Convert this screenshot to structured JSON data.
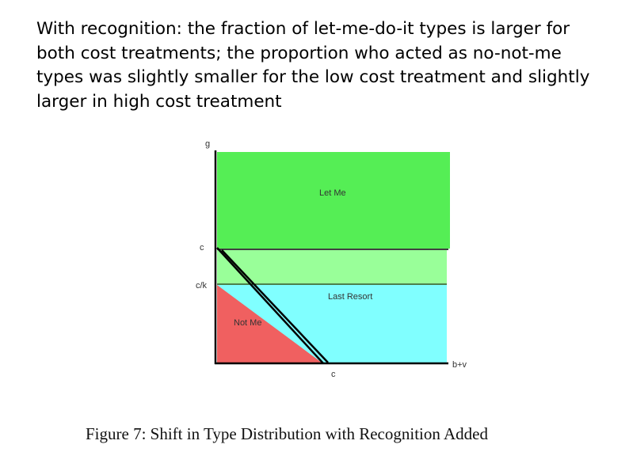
{
  "slide": {
    "text": "With recognition: the fraction of let-me-do-it types is larger for both cost treatments; the proportion who acted as no-not-me types was slightly smaller for the low cost treatment and slightly larger in high cost treatment"
  },
  "figure": {
    "axis_labels": {
      "y_top": "g",
      "y_c": "c",
      "y_ck": "c/k",
      "x_c": "c",
      "x_right": "b+v"
    },
    "regions": {
      "let_me": "Let Me",
      "last_resort": "Last Resort",
      "not_me": "Not Me"
    },
    "colors": {
      "let_me": "#55ee55",
      "light_green": "#99ff99",
      "last_resort": "#80ffff",
      "not_me": "#f06060"
    },
    "caption": "Figure 7: Shift in Type Distribution with Recognition Added"
  }
}
